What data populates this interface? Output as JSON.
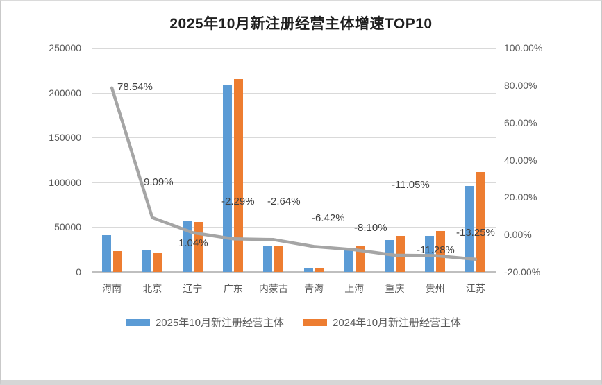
{
  "title": "2025年10月新注册经营主体增速TOP10",
  "colors": {
    "bar_2025": "#5B9BD5",
    "bar_2024": "#ED7D31",
    "growth_line": "#A5A5A5",
    "gridline": "#D9D9D9",
    "axis_text": "#595959",
    "data_label_text": "#404040"
  },
  "legend": {
    "items": [
      {
        "label": "2025年10月新注册经营主体",
        "color": "#5B9BD5"
      },
      {
        "label": "2024年10月新注册经营主体",
        "color": "#ED7D31"
      }
    ]
  },
  "chart_data": {
    "type": "combo-bar-line",
    "title": "2025年10月新注册经营主体增速TOP10",
    "categories": [
      "海南",
      "北京",
      "辽宁",
      "广东",
      "内蒙古",
      "青海",
      "上海",
      "重庆",
      "贵州",
      "江苏"
    ],
    "series": [
      {
        "name": "2025年10月新注册经营主体",
        "type": "bar",
        "axis": "left",
        "color": "#5B9BD5",
        "values": [
          41000,
          24000,
          56300,
          209000,
          28700,
          4400,
          24800,
          35500,
          40500,
          96000
        ]
      },
      {
        "name": "2024年10月新注册经营主体",
        "type": "bar",
        "axis": "left",
        "color": "#ED7D31",
        "values": [
          23000,
          22000,
          55700,
          215000,
          29500,
          4700,
          29300,
          40200,
          45900,
          111500
        ]
      },
      {
        "name": "增速",
        "type": "line",
        "axis": "right",
        "color": "#A5A5A5",
        "values": [
          78.54,
          9.09,
          1.04,
          -2.29,
          -2.64,
          -6.42,
          -8.1,
          -11.05,
          -11.28,
          -13.25
        ],
        "data_labels": [
          "78.54%",
          "9.09%",
          "1.04%",
          "-2.29%",
          "-2.64%",
          "-6.42%",
          "-8.10%",
          "-11.05%",
          "-11.28%",
          "-13.25%"
        ]
      }
    ],
    "left_axis": {
      "min": 0,
      "max": 250000,
      "tick_labels": [
        "250000",
        "200000",
        "150000",
        "100000",
        "50000",
        "0"
      ]
    },
    "right_axis": {
      "min": -20,
      "max": 100,
      "tick_labels": [
        "100.00%",
        "80.00%",
        "60.00%",
        "40.00%",
        "20.00%",
        "0.00%",
        "-20.00%"
      ]
    },
    "grid": true,
    "legend_position": "bottom"
  }
}
